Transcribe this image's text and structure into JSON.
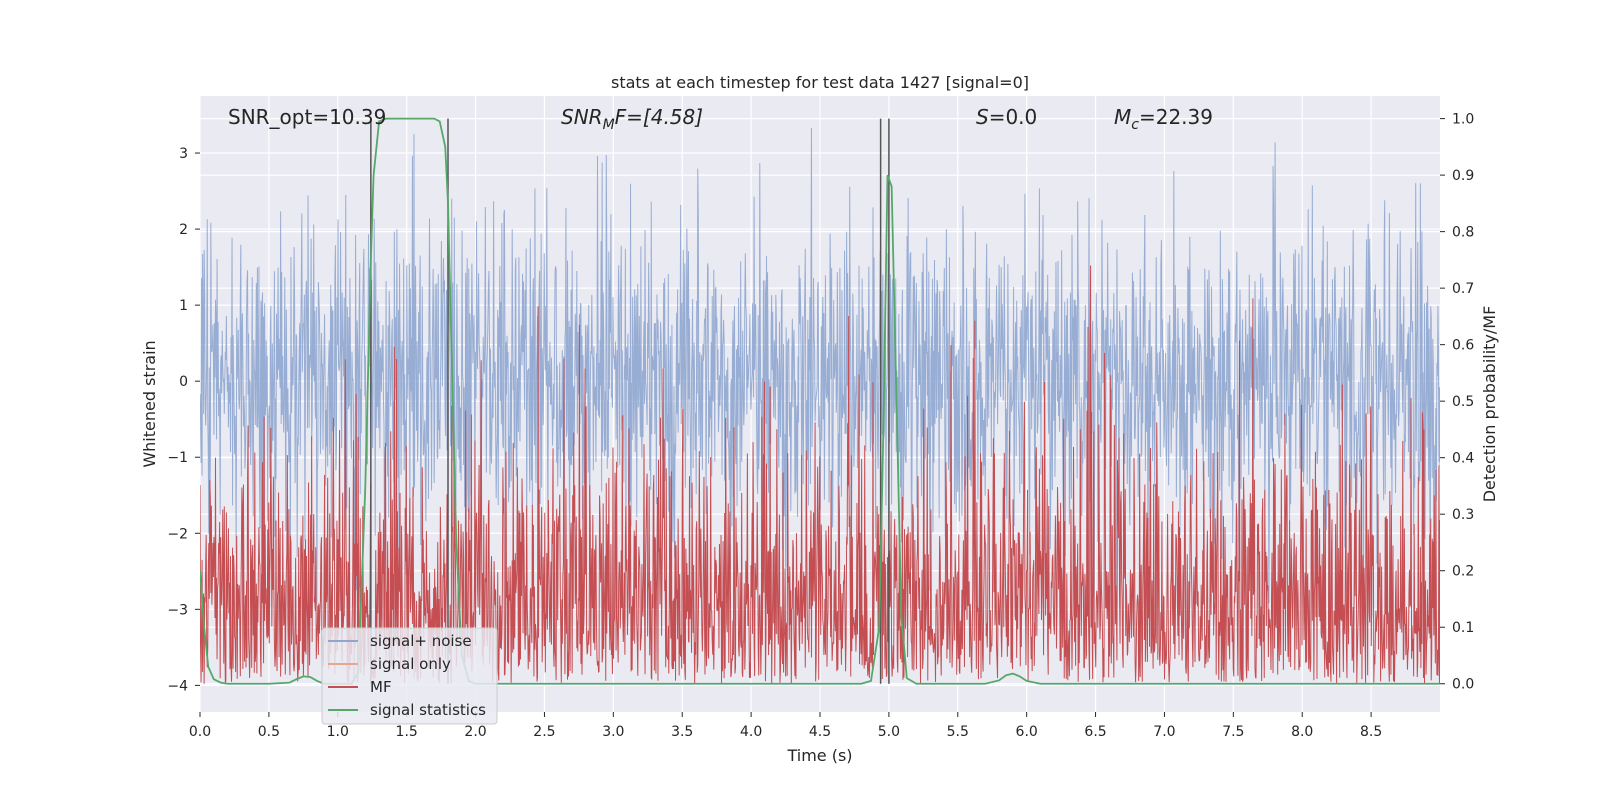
{
  "chart_data": {
    "type": "line",
    "title": "stats at each timestep for test data 1427 [signal=0]",
    "xlabel": "Time (s)",
    "ylabel": "Whitened strain",
    "ylabel_right": "Detection probability/MF",
    "xlim": [
      0,
      9
    ],
    "ylim": [
      -4.35,
      3.75
    ],
    "ylim_right": [
      -0.05,
      1.04
    ],
    "x_ticks": [
      0,
      0.5,
      1,
      1.5,
      2,
      2.5,
      3,
      3.5,
      4,
      4.5,
      5,
      5.5,
      6,
      6.5,
      7,
      7.5,
      8,
      8.5
    ],
    "x_tick_labels": [
      "0.0",
      "0.5",
      "1.0",
      "1.5",
      "2.0",
      "2.5",
      "3.0",
      "3.5",
      "4.0",
      "4.5",
      "5.0",
      "5.5",
      "6.0",
      "6.5",
      "7.0",
      "7.5",
      "8.0",
      "8.5"
    ],
    "y_ticks": [
      3,
      2,
      1,
      0,
      -1,
      -2,
      -3,
      -4
    ],
    "y_tick_labels": [
      "3",
      "2",
      "1",
      "0",
      "−1",
      "−2",
      "−3",
      "−4"
    ],
    "y_ticks_right": [
      1.0,
      0.9,
      0.8,
      0.7,
      0.6,
      0.5,
      0.4,
      0.3,
      0.2,
      0.1,
      0.0
    ],
    "y_tick_labels_right": [
      "1.0",
      "0.9",
      "0.8",
      "0.7",
      "0.6",
      "0.5",
      "0.4",
      "0.3",
      "0.2",
      "0.1",
      "0.0"
    ],
    "grid": true,
    "legend_position": "lower-left",
    "legend": [
      {
        "name": "signal+ noise",
        "color": "#8fa6cf"
      },
      {
        "name": "signal only",
        "color": "#e8a68a"
      },
      {
        "name": "MF",
        "color": "#c44e52"
      },
      {
        "name": "signal statistics",
        "color": "#55a868"
      }
    ],
    "annotations": {
      "snr_opt": "SNR_opt=10.39",
      "snr_mf_main": "SNR",
      "snr_mf_sub": "M",
      "snr_mf_rest": "F=[4.58]",
      "s_main": "S",
      "s_rest": "=0.0",
      "mc_main": "M",
      "mc_sub": "c",
      "mc_rest": "=22.39"
    },
    "vertical_lines_x": [
      1.24,
      1.8,
      4.94,
      5.0
    ],
    "signal_noise": {
      "description_visible": "dense whitened strain noise",
      "x_range": [
        0,
        9
      ],
      "typical_range": [
        -2.0,
        2.0
      ],
      "max_excursion": [
        -3.9,
        3.4
      ]
    },
    "mf": {
      "x_range": [
        0,
        9
      ],
      "typical_range": [
        0.0,
        0.6
      ],
      "max_excursion": [
        0.0,
        0.85
      ]
    },
    "signal_statistics": {
      "x": [
        0.0,
        0.03,
        0.06,
        0.1,
        0.15,
        0.2,
        0.3,
        0.5,
        0.65,
        0.7,
        0.75,
        0.8,
        0.85,
        0.9,
        1.0,
        1.1,
        1.15,
        1.2,
        1.24,
        1.26,
        1.3,
        1.35,
        1.4,
        1.5,
        1.6,
        1.7,
        1.74,
        1.78,
        1.8,
        1.83,
        1.86,
        1.9,
        1.95,
        2.0,
        2.5,
        3.0,
        3.5,
        4.0,
        4.5,
        4.8,
        4.87,
        4.93,
        4.96,
        4.99,
        5.02,
        5.06,
        5.09,
        5.13,
        5.2,
        5.5,
        5.7,
        5.8,
        5.85,
        5.9,
        5.95,
        6.0,
        6.1,
        6.2,
        6.5,
        7.0,
        7.5,
        8.0,
        8.5,
        9.0
      ],
      "y": [
        0.2,
        0.1,
        0.03,
        0.008,
        0.002,
        0.0,
        0.0,
        0.0,
        0.002,
        0.008,
        0.013,
        0.012,
        0.005,
        0.0,
        0.0,
        0.0,
        0.02,
        0.35,
        0.75,
        0.9,
        0.995,
        1.0,
        1.0,
        1.0,
        1.0,
        1.0,
        0.995,
        0.95,
        0.85,
        0.55,
        0.25,
        0.05,
        0.005,
        0.0,
        0.0,
        0.0,
        0.0,
        0.0,
        0.0,
        0.0,
        0.005,
        0.1,
        0.45,
        0.9,
        0.88,
        0.45,
        0.12,
        0.01,
        0.0,
        0.0,
        0.0,
        0.006,
        0.015,
        0.018,
        0.013,
        0.005,
        0.0,
        0.0,
        0.0,
        0.0,
        0.0,
        0.0,
        0.0,
        0.0
      ]
    }
  }
}
